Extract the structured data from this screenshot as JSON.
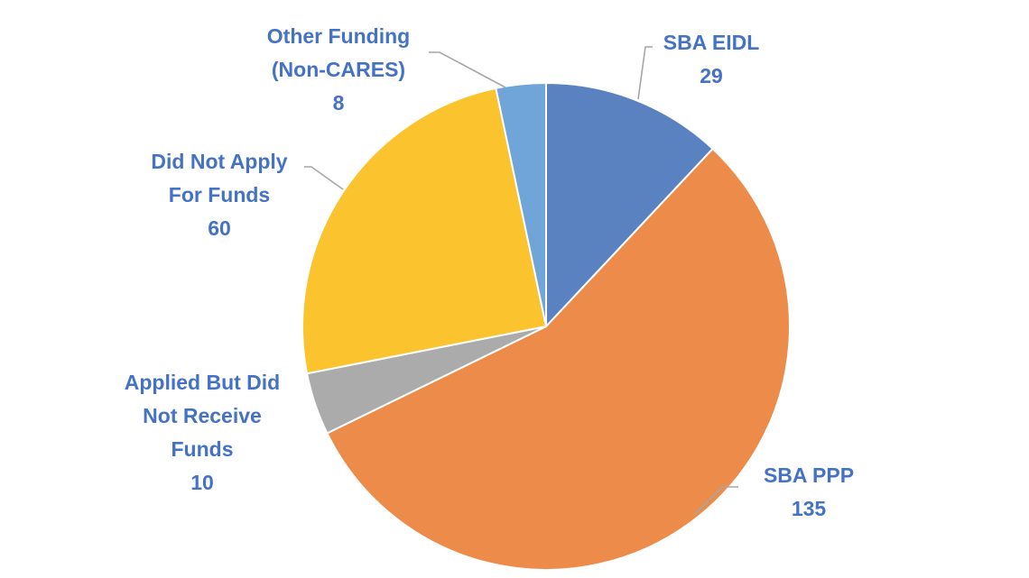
{
  "chart_data": {
    "type": "pie",
    "title": "",
    "label_color": "#4472c4",
    "start_angle_deg": 0,
    "direction": "clockwise",
    "slices": [
      {
        "label_lines": [
          "SBA EIDL"
        ],
        "value": 29,
        "value_text": "29",
        "color": "#5b82c0"
      },
      {
        "label_lines": [
          "SBA PPP"
        ],
        "value": 135,
        "value_text": "135",
        "color": "#ed8c4a"
      },
      {
        "label_lines": [
          "Applied But Did",
          "Not Receive",
          "Funds"
        ],
        "value": 10,
        "value_text": "10",
        "color": "#ababab"
      },
      {
        "label_lines": [
          "Did Not Apply",
          "For Funds"
        ],
        "value": 60,
        "value_text": "60",
        "color": "#fbc32d"
      },
      {
        "label_lines": [
          "Other Funding",
          "(Non-CARES)"
        ],
        "value": 8,
        "value_text": "8",
        "color": "#6fa5d8"
      }
    ]
  }
}
